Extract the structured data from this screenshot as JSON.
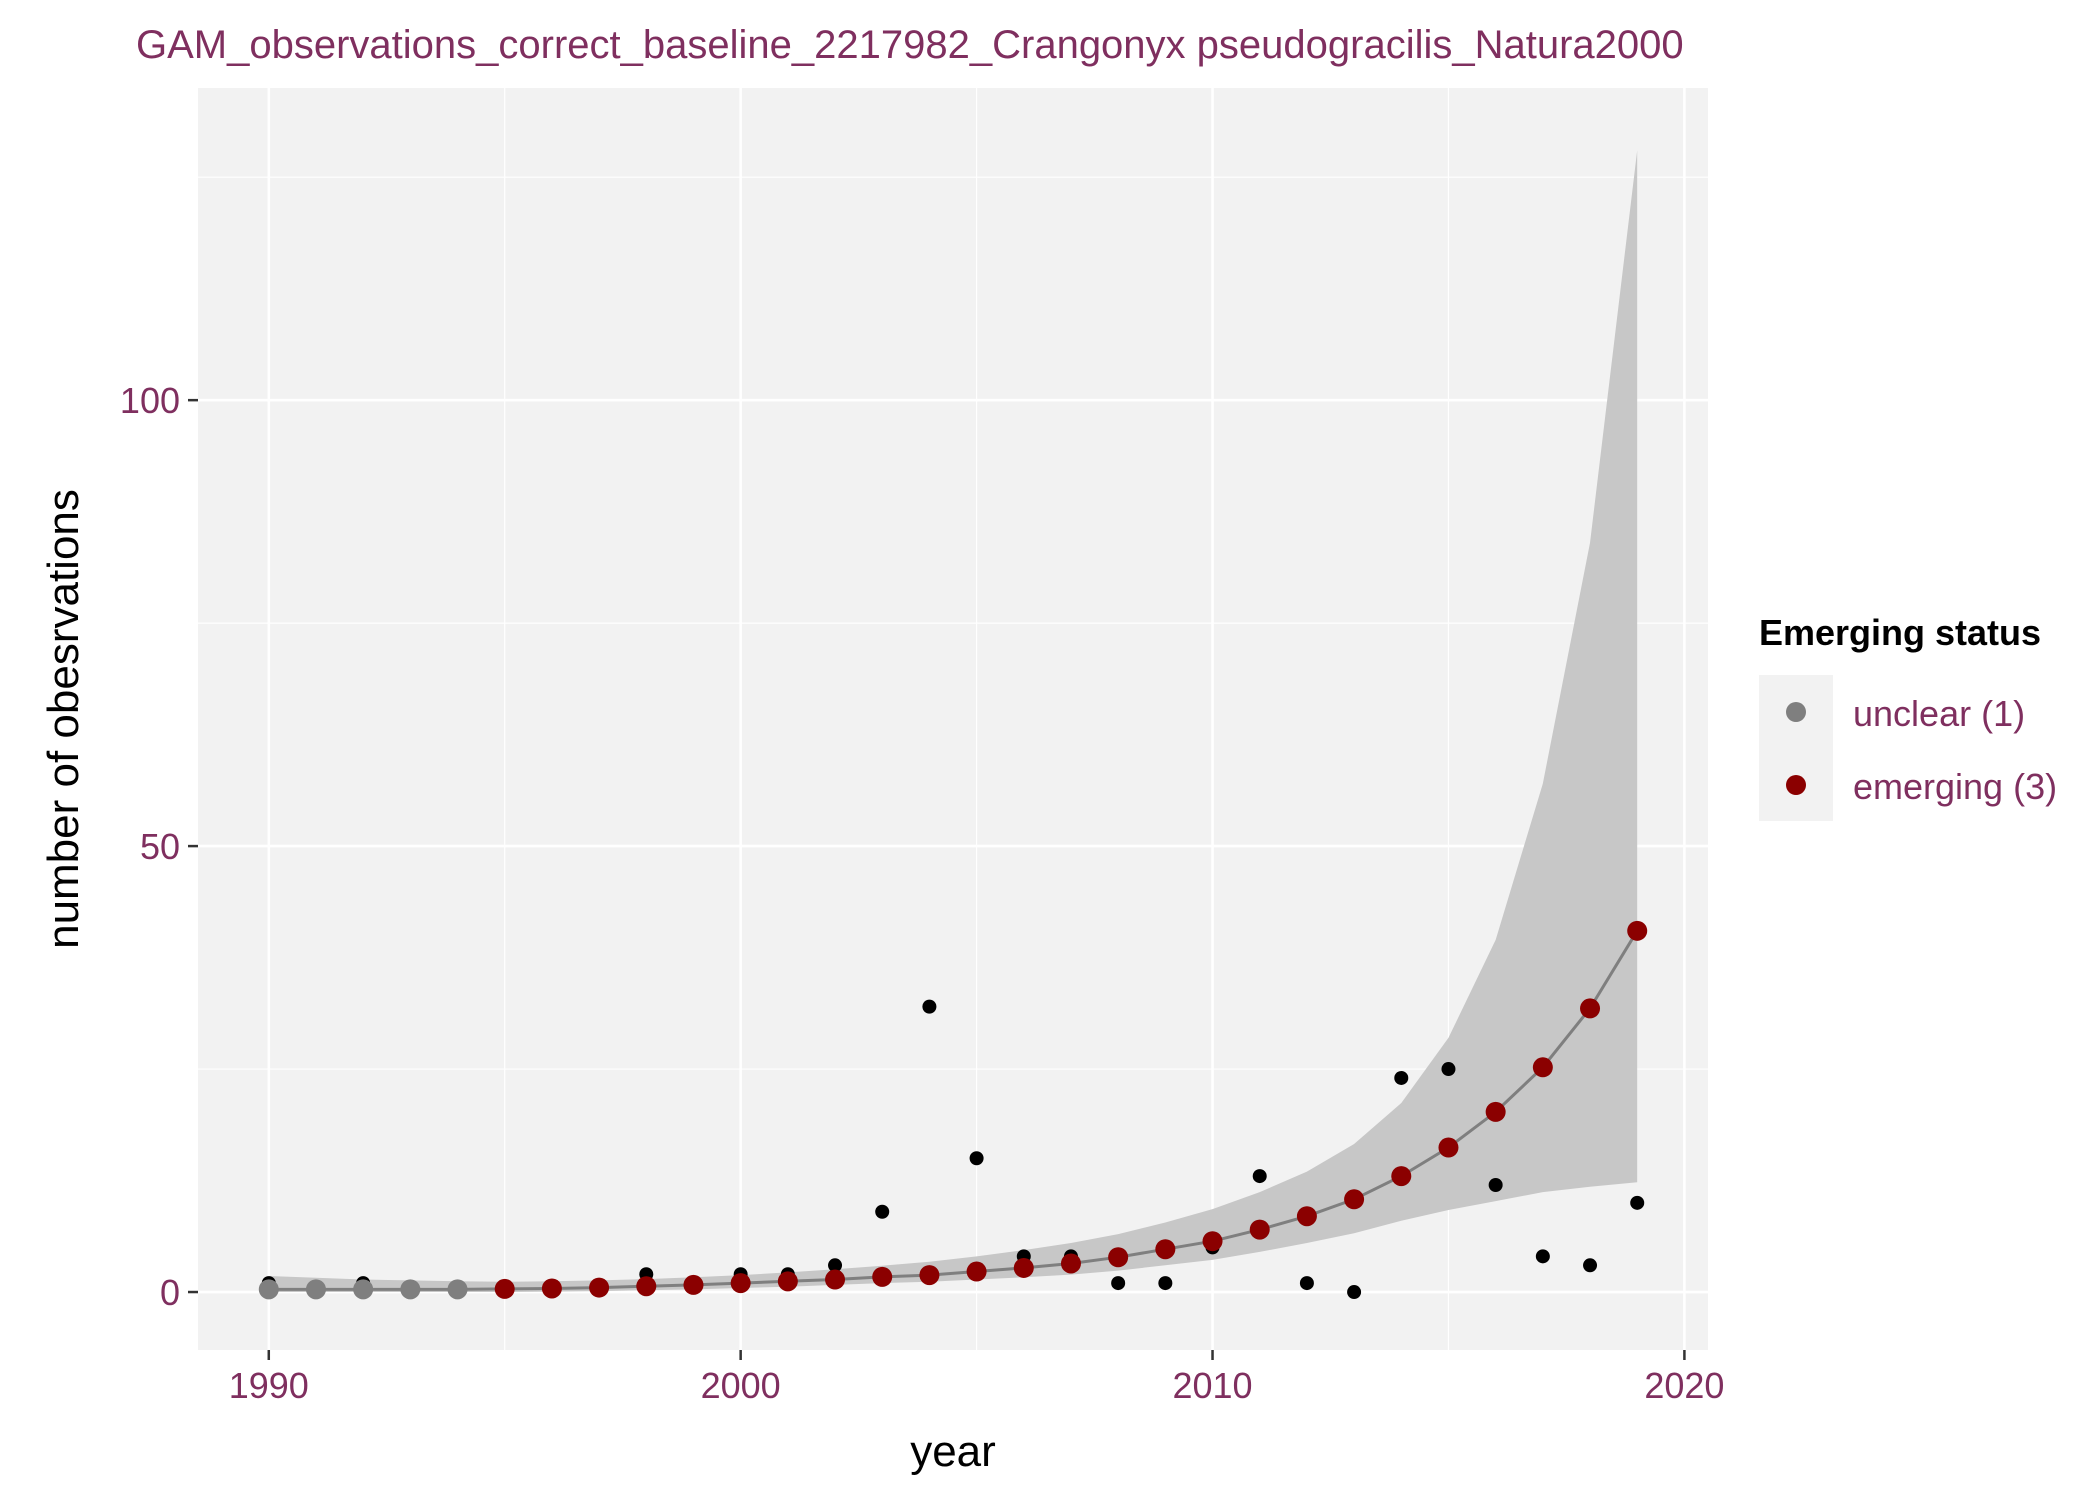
{
  "chart_data": {
    "type": "scatter",
    "title": "GAM_observations_correct_baseline_2217982_Crangonyx pseudogracilis_Natura2000",
    "xlabel": "year",
    "ylabel": "number of obesrvations",
    "xlim": [
      1988.5,
      2020.5
    ],
    "ylim": [
      -6.5,
      135
    ],
    "x_ticks": [
      1990,
      2000,
      2010,
      2020
    ],
    "y_ticks": [
      0,
      50,
      100
    ],
    "grid": true,
    "legend": {
      "title": "Emerging status",
      "position": "right",
      "entries": [
        {
          "label": "unclear (1)",
          "color": "#7f7f7f"
        },
        {
          "label": "emerging (3)",
          "color": "#8b0000"
        }
      ]
    },
    "colors": {
      "panel_background": "#f2f2f2",
      "grid": "#ffffff",
      "observations": "#000000",
      "fit_line": "#7f7f7f",
      "confidence_band": "#c7c7c7",
      "unclear": "#7f7f7f",
      "emerging": "#8b0000",
      "text": "#7f2f5f"
    },
    "observations": {
      "x": [
        1990,
        1992,
        1998,
        2000,
        2001,
        2002,
        2003,
        2004,
        2005,
        2006,
        2007,
        2008,
        2009,
        2010,
        2011,
        2012,
        2013,
        2014,
        2015,
        2016,
        2017,
        2018,
        2019
      ],
      "y": [
        1,
        1,
        2,
        2,
        2,
        3,
        9,
        32,
        15,
        4,
        4,
        1,
        1,
        5,
        13,
        1,
        0,
        24,
        25,
        12,
        4,
        3,
        10
      ]
    },
    "fit": {
      "x": [
        1990,
        1991,
        1992,
        1993,
        1994,
        1995,
        1996,
        1997,
        1998,
        1999,
        2000,
        2001,
        2002,
        2003,
        2004,
        2005,
        2006,
        2007,
        2008,
        2009,
        2010,
        2011,
        2012,
        2013,
        2014,
        2015,
        2016,
        2017,
        2018,
        2019
      ],
      "y": [
        0.3,
        0.3,
        0.3,
        0.3,
        0.3,
        0.35,
        0.4,
        0.5,
        0.65,
        0.8,
        1.0,
        1.2,
        1.4,
        1.7,
        1.9,
        2.3,
        2.7,
        3.2,
        3.9,
        4.8,
        5.7,
        7.0,
        8.5,
        10.4,
        13.0,
        16.2,
        20.2,
        25.2,
        31.8,
        40.5
      ],
      "lower": [
        0.0,
        0.0,
        0.0,
        0.0,
        0.0,
        0.0,
        0.05,
        0.1,
        0.2,
        0.3,
        0.45,
        0.6,
        0.8,
        1.0,
        1.15,
        1.4,
        1.65,
        1.95,
        2.4,
        3.0,
        3.6,
        4.5,
        5.5,
        6.6,
        8.0,
        9.2,
        10.2,
        11.2,
        11.8,
        12.3
      ],
      "upper": [
        1.8,
        1.6,
        1.4,
        1.3,
        1.2,
        1.15,
        1.2,
        1.3,
        1.45,
        1.65,
        1.9,
        2.2,
        2.55,
        2.95,
        3.4,
        4.0,
        4.7,
        5.5,
        6.5,
        7.8,
        9.3,
        11.2,
        13.5,
        16.6,
        21.2,
        28.5,
        39.5,
        57.0,
        84.0,
        128.0
      ],
      "status": [
        "unclear",
        "unclear",
        "unclear",
        "unclear",
        "unclear",
        "emerging",
        "emerging",
        "emerging",
        "emerging",
        "emerging",
        "emerging",
        "emerging",
        "emerging",
        "emerging",
        "emerging",
        "emerging",
        "emerging",
        "emerging",
        "emerging",
        "emerging",
        "emerging",
        "emerging",
        "emerging",
        "emerging",
        "emerging",
        "emerging",
        "emerging",
        "emerging",
        "emerging",
        "emerging"
      ]
    }
  }
}
